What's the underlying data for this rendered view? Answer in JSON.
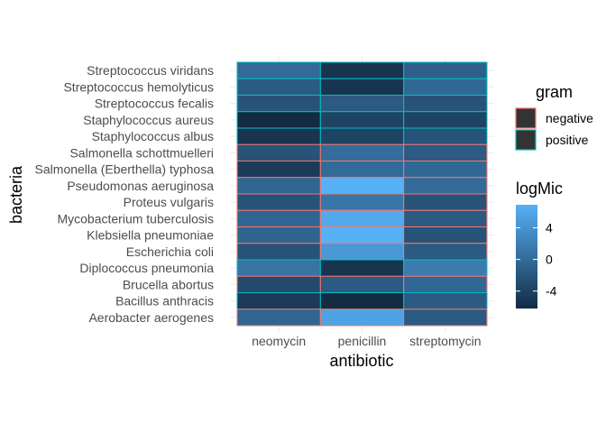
{
  "chart_data": {
    "type": "heatmap",
    "xlabel": "antibiotic",
    "ylabel": "bacteria",
    "x": [
      "neomycin",
      "penicillin",
      "streptomycin"
    ],
    "y": [
      "Streptococcus viridans",
      "Streptococcus hemolyticus",
      "Streptococcus fecalis",
      "Staphylococcus aureus",
      "Staphylococcus albus",
      "Salmonella schottmuelleri",
      "Salmonella (Eberthella) typhosa",
      "Pseudomonas aeruginosa",
      "Proteus vulgaris",
      "Mycobacterium tuberculosis",
      "Klebsiella pneumoniae",
      "Escherichia coli",
      "Diplococcus pneumonia",
      "Brucella abortus",
      "Bacillus anthracis",
      "Aerobacter aerogenes"
    ],
    "values": [
      [
        0.0,
        -5.3,
        -1.0
      ],
      [
        -1.6,
        -5.3,
        -0.3
      ],
      [
        -2.3,
        -1.6,
        -2.3
      ],
      [
        -6.2,
        -3.9,
        -3.9
      ],
      [
        -5.3,
        -3.9,
        -2.3
      ],
      [
        -2.3,
        0.2,
        -1.6
      ],
      [
        -4.6,
        0.0,
        -0.3
      ],
      [
        -0.5,
        6.9,
        0.0
      ],
      [
        -2.3,
        1.1,
        -2.3
      ],
      [
        -0.5,
        6.2,
        -1.6
      ],
      [
        -0.6,
        6.9,
        -2.3
      ],
      [
        -2.3,
        4.6,
        -1.6
      ],
      [
        0.8,
        -5.3,
        1.6
      ],
      [
        -3.2,
        -1.6,
        -0.3
      ],
      [
        -4.6,
        -6.2,
        -1.6
      ],
      [
        -0.5,
        5.5,
        -1.6
      ]
    ],
    "gram": [
      "positive",
      "positive",
      "positive",
      "positive",
      "positive",
      "negative",
      "negative",
      "negative",
      "negative",
      "negative",
      "negative",
      "negative",
      "positive",
      "negative",
      "positive",
      "negative"
    ],
    "colorbar": {
      "title": "logMic",
      "range": [
        -6.2,
        6.9
      ],
      "ticks": [
        -4,
        0,
        4
      ],
      "low_color": "#132b43",
      "high_color": "#56b1f7"
    },
    "outline_legend": {
      "title": "gram",
      "items": [
        {
          "label": "negative",
          "color": "#f8766d"
        },
        {
          "label": "positive",
          "color": "#00bfc4"
        }
      ]
    },
    "grid": true
  }
}
